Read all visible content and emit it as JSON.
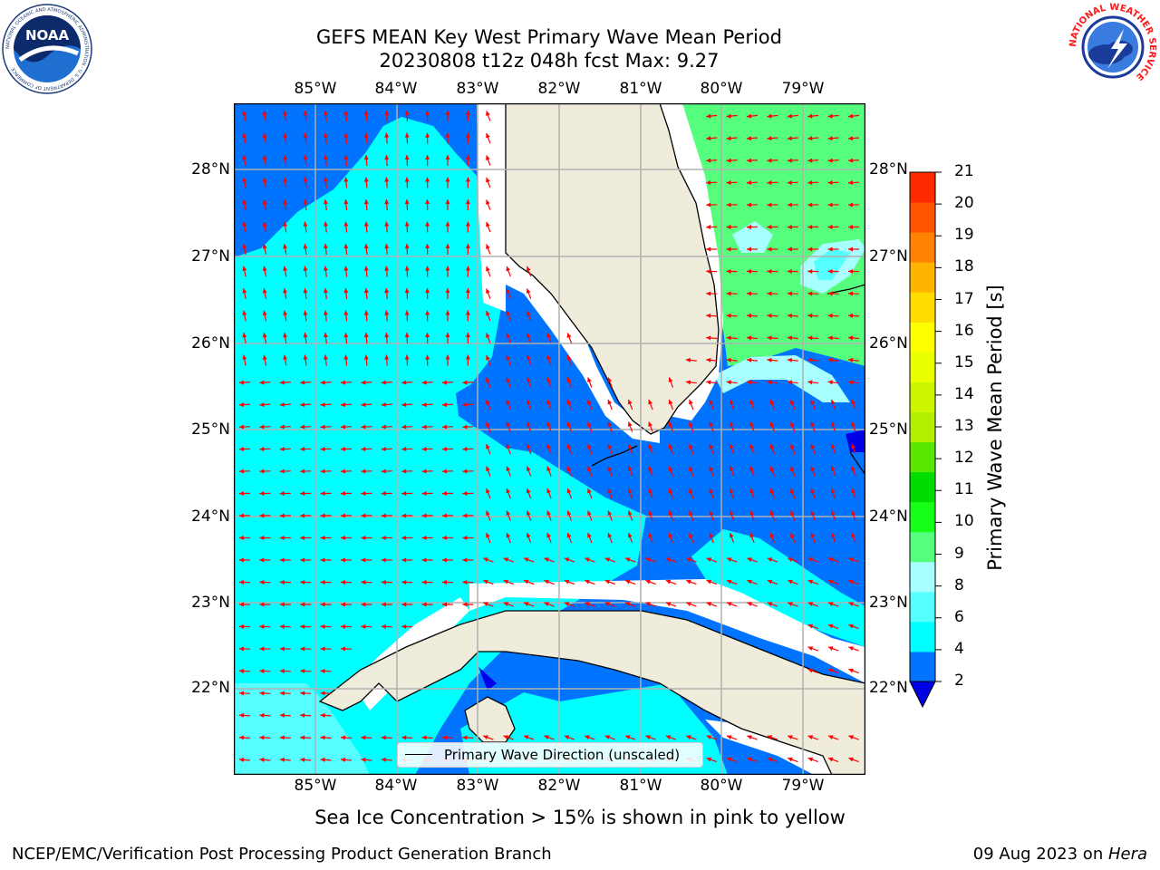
{
  "title": {
    "line1": "GEFS MEAN Key West Primary Wave Mean Period",
    "line2": "20230808 t12z 048h fcst   Max: 9.27"
  },
  "map": {
    "lon_labels": [
      "85°W",
      "84°W",
      "83°W",
      "82°W",
      "81°W",
      "80°W",
      "79°W"
    ],
    "lat_labels": [
      "28°N",
      "27°N",
      "26°N",
      "25°N",
      "24°N",
      "23°N",
      "22°N"
    ],
    "legend": "Primary Wave Direction (unscaled)",
    "colors": {
      "land": "#efecdc",
      "coast": "#000000",
      "grid": "#b0b0b0",
      "arrow": "#ff0000",
      "no_data": "#ffffff"
    }
  },
  "colorbar": {
    "label": "Primary Wave Mean Period [s]",
    "ticks": [
      "2",
      "4",
      "6",
      "8",
      "9",
      "10",
      "11",
      "12",
      "13",
      "14",
      "15",
      "16",
      "17",
      "18",
      "19",
      "20",
      "21"
    ],
    "colors": [
      "#0073ff",
      "#00ffff",
      "#55ffff",
      "#a8ffff",
      "#55ff7d",
      "#16ff16",
      "#00dc00",
      "#59e600",
      "#b3ef00",
      "#ccf500",
      "#eaff00",
      "#ffff00",
      "#ffdc00",
      "#ffb400",
      "#ff8200",
      "#ff5500",
      "#ff2a00",
      "#ff0000"
    ],
    "under_color": "#0000e6"
  },
  "note": "Sea Ice Concentration > 15% is shown in pink to yellow",
  "footer": {
    "left": "NCEP/EMC/Verification Post Processing Product Generation Branch",
    "right_date": "09 Aug 2023 on ",
    "right_host": "Hera"
  },
  "logos": {
    "noaa": "NOAA",
    "noaa_ring": "NATIONAL OCEANIC AND ATMOSPHERIC ADMINISTRATION · U.S. DEPARTMENT OF COMMERCE",
    "nws_ring": "NATIONAL WEATHER SERVICE"
  }
}
